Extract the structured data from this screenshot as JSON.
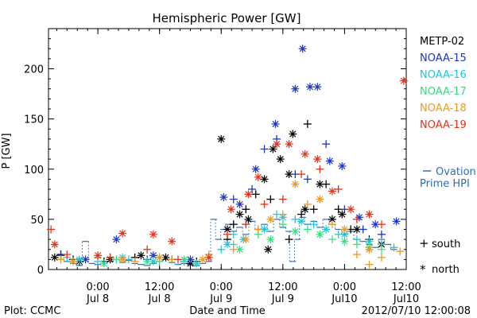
{
  "chart_data": {
    "type": "scatter",
    "title": "Hemispheric Power [GW]",
    "ylabel": "P [GW]",
    "xlabel": "Date and Time",
    "ylim": [
      0,
      240
    ],
    "xlim": [
      -0.4,
      2.5
    ],
    "yticks": [
      0,
      50,
      100,
      150,
      200
    ],
    "xticks": [
      {
        "x": 0.0,
        "time": "0:00",
        "date": "Jul 8"
      },
      {
        "x": 0.5,
        "time": "12:00",
        "date": "Jul 8"
      },
      {
        "x": 1.0,
        "time": "0:00",
        "date": "Jul 9"
      },
      {
        "x": 1.5,
        "time": "12:00",
        "date": "Jul 9"
      },
      {
        "x": 2.0,
        "time": "0:00",
        "date": "Jul10"
      },
      {
        "x": 2.5,
        "time": "12:00",
        "date": "Jul10"
      }
    ],
    "legend": [
      {
        "name": "METP-02",
        "color": "#000000"
      },
      {
        "name": "NOAA-15",
        "color": "#1a35c8"
      },
      {
        "name": "NOAA-16",
        "color": "#22c4dc"
      },
      {
        "name": "NOAA-17",
        "color": "#33e080"
      },
      {
        "name": "NOAA-18",
        "color": "#e89a24"
      },
      {
        "name": "NOAA-19",
        "color": "#e0331a"
      }
    ],
    "ovation": {
      "label_line1": "Ovation",
      "label_line2": "Prime HPI",
      "color": "#2c6db8",
      "points": [
        [
          -0.3,
          10
        ],
        [
          -0.25,
          8
        ],
        [
          -0.2,
          6
        ],
        [
          -0.15,
          4
        ],
        [
          -0.1,
          28
        ],
        [
          -0.05,
          6
        ],
        [
          0.0,
          5
        ],
        [
          0.05,
          6
        ],
        [
          0.1,
          8
        ],
        [
          0.15,
          10
        ],
        [
          0.2,
          7
        ],
        [
          0.25,
          9
        ],
        [
          0.3,
          6
        ],
        [
          0.35,
          5
        ],
        [
          0.4,
          4
        ],
        [
          0.45,
          6
        ],
        [
          0.5,
          8
        ],
        [
          0.55,
          10
        ],
        [
          0.6,
          7
        ],
        [
          0.65,
          5
        ],
        [
          0.7,
          6
        ],
        [
          0.75,
          5
        ],
        [
          0.8,
          4
        ],
        [
          0.85,
          6
        ],
        [
          0.9,
          8
        ],
        [
          0.94,
          50
        ],
        [
          0.98,
          30
        ],
        [
          1.02,
          40
        ],
        [
          1.06,
          45
        ],
        [
          1.1,
          38
        ],
        [
          1.15,
          42
        ],
        [
          1.2,
          35
        ],
        [
          1.25,
          48
        ],
        [
          1.3,
          40
        ],
        [
          1.35,
          45
        ],
        [
          1.4,
          38
        ],
        [
          1.45,
          50
        ],
        [
          1.5,
          42
        ],
        [
          1.55,
          38
        ],
        [
          1.58,
          8
        ],
        [
          1.62,
          30
        ],
        [
          1.66,
          52
        ],
        [
          1.7,
          45
        ],
        [
          1.75,
          48
        ],
        [
          1.8,
          42
        ],
        [
          1.85,
          50
        ],
        [
          1.9,
          45
        ],
        [
          1.95,
          40
        ],
        [
          2.0,
          35
        ],
        [
          2.05,
          38
        ],
        [
          2.1,
          30
        ],
        [
          2.15,
          28
        ],
        [
          2.2,
          25
        ],
        [
          2.25,
          22
        ],
        [
          2.3,
          30
        ],
        [
          2.35,
          25
        ],
        [
          2.4,
          20
        ]
      ]
    },
    "symbol_legend": [
      {
        "symbol": "+",
        "label": "south"
      },
      {
        "symbol": "*",
        "label": "north"
      }
    ],
    "series": [
      {
        "name": "METP-02",
        "color": "#000000",
        "south": [
          [
            -0.3,
            15
          ],
          [
            -0.2,
            10
          ],
          [
            0.05,
            8
          ],
          [
            0.3,
            12
          ],
          [
            0.6,
            10
          ],
          [
            0.8,
            8
          ],
          [
            1.05,
            30
          ],
          [
            1.1,
            45
          ],
          [
            1.2,
            60
          ],
          [
            1.28,
            75
          ],
          [
            1.4,
            70
          ],
          [
            1.55,
            30
          ],
          [
            1.65,
            55
          ],
          [
            1.75,
            60
          ],
          [
            1.85,
            85
          ],
          [
            1.95,
            60
          ],
          [
            2.05,
            40
          ],
          [
            2.2,
            30
          ],
          [
            1.7,
            145
          ]
        ],
        "north": [
          [
            -0.35,
            12
          ],
          [
            -0.15,
            8
          ],
          [
            0.1,
            10
          ],
          [
            0.35,
            14
          ],
          [
            0.55,
            12
          ],
          [
            0.75,
            6
          ],
          [
            1.0,
            130
          ],
          [
            1.05,
            40
          ],
          [
            1.15,
            55
          ],
          [
            1.22,
            50
          ],
          [
            1.35,
            90
          ],
          [
            1.42,
            120
          ],
          [
            1.48,
            110
          ],
          [
            1.55,
            95
          ],
          [
            1.58,
            135
          ],
          [
            1.68,
            60
          ],
          [
            1.8,
            85
          ],
          [
            1.9,
            50
          ],
          [
            1.98,
            55
          ],
          [
            2.1,
            40
          ],
          [
            2.3,
            25
          ],
          [
            1.38,
            20
          ]
        ]
      },
      {
        "name": "NOAA-15",
        "color": "#1a35c8",
        "south": [
          [
            -0.3,
            14
          ],
          [
            0.1,
            12
          ],
          [
            0.4,
            10
          ],
          [
            0.7,
            8
          ],
          [
            1.1,
            70
          ],
          [
            1.25,
            80
          ],
          [
            1.35,
            120
          ],
          [
            1.45,
            130
          ],
          [
            1.6,
            95
          ],
          [
            1.7,
            90
          ],
          [
            1.85,
            125
          ],
          [
            2.0,
            60
          ],
          [
            2.15,
            40
          ],
          [
            2.3,
            35
          ]
        ],
        "north": [
          [
            -0.1,
            10
          ],
          [
            0.15,
            30
          ],
          [
            0.45,
            14
          ],
          [
            0.75,
            10
          ],
          [
            1.02,
            72
          ],
          [
            1.15,
            65
          ],
          [
            1.28,
            100
          ],
          [
            1.44,
            145
          ],
          [
            1.6,
            180
          ],
          [
            1.66,
            220
          ],
          [
            1.72,
            182
          ],
          [
            1.78,
            182
          ],
          [
            1.88,
            108
          ],
          [
            1.98,
            103
          ],
          [
            2.12,
            52
          ],
          [
            2.25,
            45
          ],
          [
            2.42,
            48
          ]
        ]
      },
      {
        "name": "NOAA-16",
        "color": "#22c4dc",
        "south": [
          [
            -0.25,
            12
          ],
          [
            0.0,
            8
          ],
          [
            0.25,
            10
          ],
          [
            0.5,
            12
          ],
          [
            0.7,
            8
          ],
          [
            1.0,
            20
          ],
          [
            1.1,
            35
          ],
          [
            1.2,
            45
          ],
          [
            1.3,
            40
          ],
          [
            1.45,
            55
          ],
          [
            1.6,
            50
          ],
          [
            1.75,
            45
          ],
          [
            1.95,
            35
          ],
          [
            2.1,
            30
          ],
          [
            2.3,
            25
          ],
          [
            2.4,
            22
          ]
        ],
        "north": [
          [
            -0.15,
            10
          ],
          [
            0.2,
            12
          ],
          [
            0.45,
            8
          ],
          [
            0.8,
            6
          ],
          [
            1.05,
            25
          ],
          [
            1.18,
            30
          ],
          [
            1.35,
            40
          ],
          [
            1.5,
            52
          ],
          [
            1.65,
            48
          ],
          [
            1.85,
            40
          ],
          [
            2.0,
            35
          ],
          [
            2.2,
            28
          ]
        ]
      },
      {
        "name": "NOAA-17",
        "color": "#33e080",
        "south": [
          [
            -0.2,
            8
          ],
          [
            0.15,
            10
          ],
          [
            0.5,
            8
          ],
          [
            0.8,
            6
          ],
          [
            1.1,
            25
          ],
          [
            1.3,
            35
          ],
          [
            1.5,
            45
          ],
          [
            1.7,
            40
          ],
          [
            1.9,
            30
          ],
          [
            2.1,
            25
          ],
          [
            2.3,
            20
          ]
        ],
        "north": [
          [
            0.05,
            6
          ],
          [
            0.4,
            8
          ],
          [
            0.7,
            10
          ],
          [
            1.15,
            20
          ],
          [
            1.4,
            30
          ],
          [
            1.6,
            38
          ],
          [
            1.8,
            35
          ],
          [
            2.0,
            28
          ],
          [
            2.2,
            22
          ]
        ]
      },
      {
        "name": "NOAA-18",
        "color": "#e89a24",
        "south": [
          [
            -0.3,
            10
          ],
          [
            0.0,
            12
          ],
          [
            0.3,
            8
          ],
          [
            0.6,
            10
          ],
          [
            0.9,
            15
          ],
          [
            1.1,
            20
          ],
          [
            1.3,
            40
          ],
          [
            1.5,
            55
          ],
          [
            1.7,
            65
          ],
          [
            1.9,
            45
          ],
          [
            2.1,
            15
          ],
          [
            2.2,
            5
          ],
          [
            2.3,
            12
          ],
          [
            2.45,
            18
          ]
        ],
        "north": [
          [
            -0.2,
            8
          ],
          [
            0.2,
            10
          ],
          [
            0.5,
            12
          ],
          [
            0.85,
            10
          ],
          [
            1.2,
            30
          ],
          [
            1.4,
            50
          ],
          [
            1.6,
            85
          ],
          [
            1.8,
            70
          ],
          [
            2.0,
            40
          ],
          [
            2.2,
            20
          ]
        ]
      },
      {
        "name": "NOAA-19",
        "color": "#e0331a",
        "south": [
          [
            -0.38,
            40
          ],
          [
            -0.25,
            15
          ],
          [
            0.1,
            12
          ],
          [
            0.4,
            20
          ],
          [
            0.65,
            10
          ],
          [
            1.05,
            35
          ],
          [
            1.2,
            45
          ],
          [
            1.35,
            65
          ],
          [
            1.5,
            70
          ],
          [
            1.65,
            95
          ],
          [
            1.8,
            100
          ],
          [
            1.95,
            80
          ],
          [
            2.1,
            50
          ],
          [
            2.3,
            45
          ]
        ],
        "north": [
          [
            -0.35,
            25
          ],
          [
            0.0,
            14
          ],
          [
            0.2,
            36
          ],
          [
            0.45,
            35
          ],
          [
            0.6,
            28
          ],
          [
            0.9,
            12
          ],
          [
            1.08,
            60
          ],
          [
            1.22,
            75
          ],
          [
            1.3,
            92
          ],
          [
            1.45,
            125
          ],
          [
            1.55,
            125
          ],
          [
            1.68,
            115
          ],
          [
            1.78,
            110
          ],
          [
            1.9,
            78
          ],
          [
            2.05,
            60
          ],
          [
            2.2,
            55
          ],
          [
            2.48,
            188
          ]
        ]
      }
    ]
  },
  "footer": {
    "left": "Plot: CCMC",
    "right": "2012/07/10 12:00:08"
  }
}
